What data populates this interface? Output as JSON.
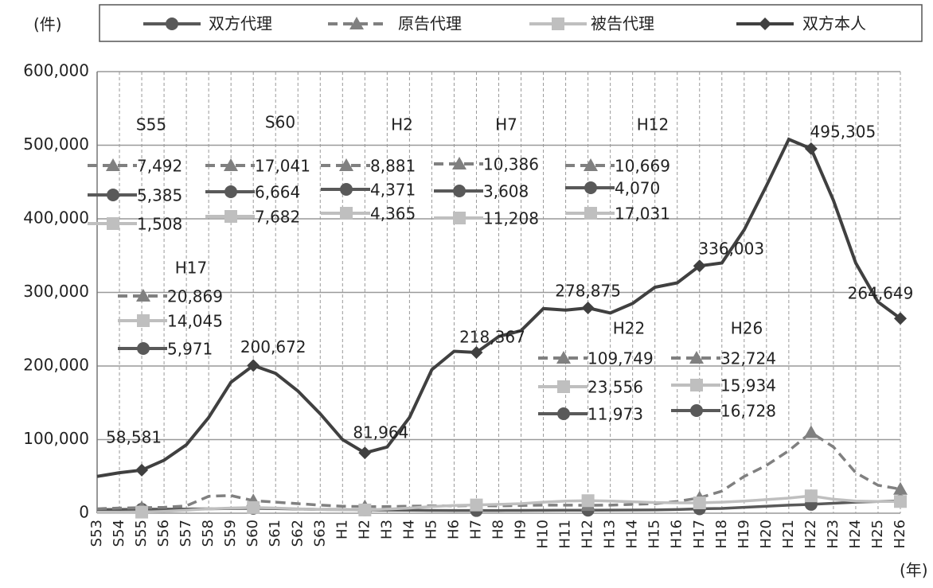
{
  "chart_data": {
    "type": "line",
    "y_unit": "(件)",
    "x_unit": "(年)",
    "categories": [
      "S53",
      "S54",
      "S55",
      "S56",
      "S57",
      "S58",
      "S59",
      "S60",
      "S61",
      "S62",
      "S63",
      "H1",
      "H2",
      "H3",
      "H4",
      "H5",
      "H6",
      "H7",
      "H8",
      "H9",
      "H10",
      "H11",
      "H12",
      "H13",
      "H14",
      "H15",
      "H16",
      "H17",
      "H18",
      "H19",
      "H20",
      "H21",
      "H22",
      "H23",
      "H24",
      "H25",
      "H26"
    ],
    "ylim": [
      0,
      600000
    ],
    "yticks": [
      0,
      {
        "value": 100000,
        "label": "100,000"
      },
      {
        "value": 200000,
        "label": "200,000"
      },
      {
        "value": 300000,
        "label": "300,000"
      },
      {
        "value": 400000,
        "label": "400,000"
      },
      {
        "value": 500000,
        "label": "500,000"
      },
      {
        "value": 600000,
        "label": "600,000"
      }
    ],
    "grid": true,
    "label_groups": [
      "S55",
      "S60",
      "H2",
      "H7",
      "H12",
      "H17",
      "H22",
      "H26"
    ],
    "series": [
      {
        "name": "双方代理",
        "color": "#595959",
        "dash": false,
        "marker": "circle",
        "values": [
          5000,
          5200,
          5385,
          5500,
          5700,
          6000,
          6300,
          6664,
          6200,
          5700,
          5200,
          4800,
          4371,
          4200,
          4000,
          3800,
          3700,
          3608,
          3700,
          3800,
          3900,
          4000,
          4070,
          4200,
          4300,
          4500,
          5000,
          5971,
          6500,
          8000,
          9500,
          11000,
          11973,
          13500,
          15000,
          16000,
          16728
        ],
        "value_labels": [
          null,
          null,
          "5,385",
          null,
          null,
          null,
          null,
          "6,664",
          null,
          null,
          null,
          null,
          "4,371",
          null,
          null,
          null,
          null,
          "3,608",
          null,
          null,
          null,
          null,
          "4,070",
          null,
          null,
          null,
          null,
          "5,971",
          null,
          null,
          null,
          null,
          "11,973",
          null,
          null,
          null,
          "16,728"
        ]
      },
      {
        "name": "原告代理",
        "color": "#808080",
        "dash": true,
        "marker": "triangle",
        "values": [
          6000,
          7000,
          7492,
          8000,
          10000,
          23000,
          24000,
          17041,
          15000,
          13000,
          11000,
          9500,
          8881,
          9000,
          9500,
          10000,
          10000,
          10386,
          10000,
          10500,
          11000,
          11000,
          10669,
          11000,
          12000,
          13000,
          16000,
          20869,
          30000,
          50000,
          65000,
          85000,
          109749,
          90000,
          55000,
          38000,
          32724
        ],
        "value_labels": [
          null,
          null,
          "7,492",
          null,
          null,
          null,
          null,
          "17,041",
          null,
          null,
          null,
          null,
          "8,881",
          null,
          null,
          null,
          null,
          "10,386",
          null,
          null,
          null,
          null,
          "10,669",
          null,
          null,
          null,
          null,
          "20,869",
          null,
          null,
          null,
          null,
          "109,749",
          null,
          null,
          null,
          "32,724"
        ]
      },
      {
        "name": "被告代理",
        "color": "#bfbfbf",
        "dash": false,
        "marker": "square",
        "values": [
          1200,
          1300,
          1508,
          2500,
          4000,
          6000,
          7000,
          7682,
          7000,
          6000,
          5000,
          4500,
          4365,
          5500,
          7000,
          9000,
          10500,
          11208,
          12000,
          13000,
          15000,
          16500,
          17031,
          16500,
          15500,
          14500,
          14000,
          14045,
          15000,
          16500,
          18500,
          20500,
          23556,
          19000,
          16500,
          16000,
          15934
        ],
        "value_labels": [
          null,
          null,
          "1,508",
          null,
          null,
          null,
          null,
          "7,682",
          null,
          null,
          null,
          null,
          "4,365",
          null,
          null,
          null,
          null,
          "11,208",
          null,
          null,
          null,
          null,
          "17,031",
          null,
          null,
          null,
          null,
          "14,045",
          null,
          null,
          null,
          null,
          "23,556",
          null,
          null,
          null,
          "15,934"
        ]
      },
      {
        "name": "双方本人",
        "color": "#404040",
        "dash": false,
        "marker": "diamond",
        "values": [
          50000,
          55000,
          58581,
          72000,
          93000,
          130000,
          178000,
          200672,
          190000,
          166000,
          135000,
          100000,
          81964,
          90000,
          130000,
          195000,
          220000,
          218367,
          240000,
          248000,
          278000,
          276000,
          278875,
          272000,
          285000,
          307000,
          313000,
          336003,
          340000,
          385000,
          445000,
          508000,
          495305,
          425000,
          340000,
          287000,
          264649
        ],
        "value_labels": [
          null,
          null,
          "58,581",
          null,
          null,
          null,
          null,
          "200,672",
          null,
          null,
          null,
          null,
          "81,964",
          null,
          null,
          null,
          null,
          "218,367",
          null,
          null,
          null,
          null,
          "278,875",
          null,
          null,
          null,
          null,
          "336,003",
          null,
          null,
          null,
          null,
          "495,305",
          null,
          null,
          null,
          "264,649"
        ]
      }
    ]
  }
}
